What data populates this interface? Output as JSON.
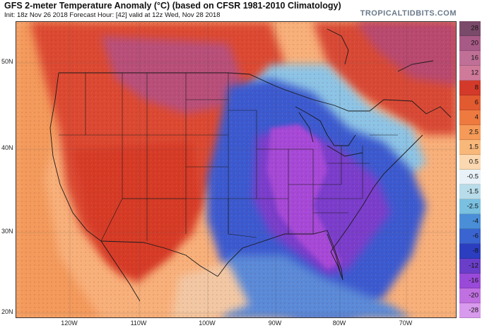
{
  "header": {
    "title": "GFS 2-meter Temperature Anomaly (°C) (based on CFSR 1981-2010 Climatology)",
    "subtitle": "Init: 18z Nov 26 2018   Forecast Hour: [42]   valid at 12z Wed, Nov 28 2018",
    "brand": "TROPICALTIDBITS.COM"
  },
  "map": {
    "region": "North America",
    "lat_labels": [
      "50N",
      "40N",
      "30N",
      "20N"
    ],
    "lon_labels": [
      "120W",
      "110W",
      "100W",
      "90W",
      "80W",
      "70W"
    ]
  },
  "colorbar": {
    "levels": [
      "28",
      "20",
      "16",
      "12",
      "8",
      "6",
      "4",
      "2.5",
      "1.5",
      "0.5",
      "-0.5",
      "-1.5",
      "-2.5",
      "-4",
      "-6",
      "-8",
      "-12",
      "-16",
      "-20",
      "-28"
    ],
    "colors": [
      "#7a4a6a",
      "#a85a86",
      "#c07096",
      "#d07a9a",
      "#d43a2a",
      "#e25a30",
      "#ee7a40",
      "#f59a58",
      "#f8b87a",
      "#fbd8b0",
      "#e8f2f8",
      "#b8dcea",
      "#7ac0e0",
      "#4a8ed8",
      "#3a64d0",
      "#2c3ec0",
      "#6a3ec8",
      "#9a4ad8",
      "#c070e0",
      "#d89aec"
    ]
  }
}
